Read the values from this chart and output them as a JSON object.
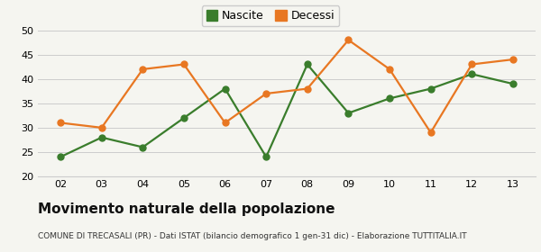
{
  "years": [
    "02",
    "03",
    "04",
    "05",
    "06",
    "07",
    "08",
    "09",
    "10",
    "11",
    "12",
    "13"
  ],
  "nascite": [
    24,
    28,
    26,
    32,
    38,
    24,
    43,
    33,
    36,
    38,
    41,
    39
  ],
  "decessi": [
    31,
    30,
    42,
    43,
    31,
    37,
    38,
    48,
    42,
    29,
    43,
    44
  ],
  "nascite_color": "#3a7d2c",
  "decessi_color": "#e87722",
  "title": "Movimento naturale della popolazione",
  "subtitle": "COMUNE DI TRECASALI (PR) - Dati ISTAT (bilancio demografico 1 gen-31 dic) - Elaborazione TUTTITALIA.IT",
  "legend_nascite": "Nascite",
  "legend_decessi": "Decessi",
  "ylim": [
    20,
    50
  ],
  "yticks": [
    20,
    25,
    30,
    35,
    40,
    45,
    50
  ],
  "background_color": "#f5f5f0",
  "grid_color": "#cccccc",
  "marker_size": 5,
  "linewidth": 1.6,
  "title_fontsize": 11,
  "subtitle_fontsize": 6.5,
  "legend_fontsize": 9,
  "tick_fontsize": 8
}
